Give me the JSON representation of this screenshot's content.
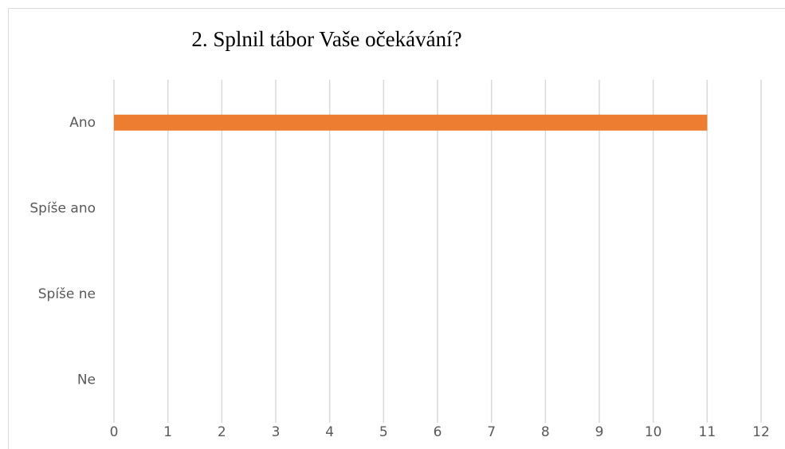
{
  "chart_data": {
    "type": "bar",
    "orientation": "horizontal",
    "title": "2. Splnil tábor Vaše očekávání?",
    "categories": [
      "Ano",
      "Spíše ano",
      "Spíše ne",
      "Ne"
    ],
    "values": [
      11,
      0,
      0,
      0
    ],
    "color": "#ed7d31",
    "xlim": [
      0,
      12
    ],
    "xticks": [
      0,
      1,
      2,
      3,
      4,
      5,
      6,
      7,
      8,
      9,
      10,
      11,
      12
    ],
    "grid": true
  }
}
